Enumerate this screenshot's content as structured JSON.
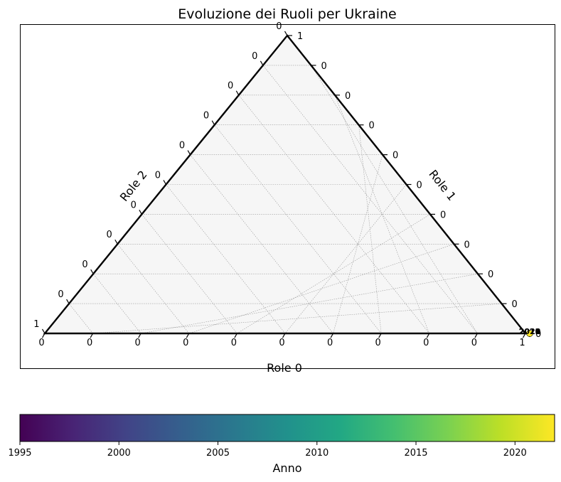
{
  "chart_data": {
    "type": "scatter",
    "subtype": "ternary",
    "title": "Evoluzione dei Ruoli per Ukraine",
    "axes": {
      "bottom": {
        "label": "Role 0",
        "ticks": [
          "0",
          "0",
          "0",
          "0",
          "0",
          "0",
          "0",
          "0",
          "0",
          "0",
          "1"
        ]
      },
      "right": {
        "label": "Role 1",
        "ticks": [
          "0",
          "0",
          "0",
          "0",
          "0",
          "0",
          "0",
          "0",
          "0",
          "0",
          "1"
        ]
      },
      "left": {
        "label": "Role 2",
        "ticks": [
          "0",
          "0",
          "0",
          "0",
          "0",
          "0",
          "0",
          "0",
          "0",
          "0",
          "1"
        ]
      }
    },
    "grid": true,
    "points": [
      {
        "year": 2018,
        "role0": 1,
        "role1": 0,
        "role2": 0
      },
      {
        "year": 2019,
        "role0": 1,
        "role1": 0,
        "role2": 0
      },
      {
        "year": 2020,
        "role0": 1,
        "role1": 0,
        "role2": 0
      },
      {
        "year": 2021,
        "role0": 1,
        "role1": 0,
        "role2": 0
      },
      {
        "year": 2022,
        "role0": 1,
        "role1": 0,
        "role2": 0
      }
    ],
    "colorbar": {
      "label": "Anno",
      "colormap": "viridis",
      "range": [
        1995,
        2022
      ],
      "ticks": [
        1995,
        2000,
        2005,
        2010,
        2015,
        2020
      ]
    }
  }
}
